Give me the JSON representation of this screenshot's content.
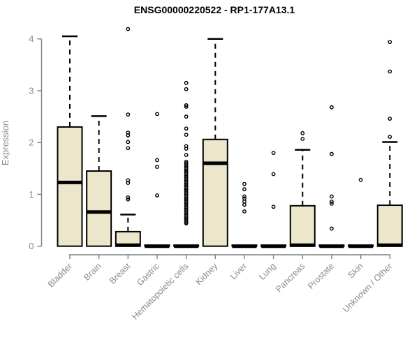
{
  "chart_data": {
    "type": "boxplot",
    "title": "ENSG00000220522 - RP1-177A13.1",
    "ylabel": "Expression",
    "xlabel": "",
    "ylim": [
      0,
      4.3
    ],
    "yticks": [
      0,
      1,
      2,
      3,
      4
    ],
    "grid": false,
    "legend": "none",
    "categories": [
      "Bladder",
      "Brain",
      "Breast",
      "Gastric",
      "Hematopoietic cells",
      "Kidney",
      "Liver",
      "Lung",
      "Pancreas",
      "Prostate",
      "Skin",
      "Unknown / Other"
    ],
    "series": [
      {
        "name": "Bladder",
        "q1": 0,
        "median": 1.23,
        "q3": 2.3,
        "whisker_low": 0,
        "whisker_high": 4.05,
        "outliers": []
      },
      {
        "name": "Brain",
        "q1": 0,
        "median": 0.66,
        "q3": 1.45,
        "whisker_low": 0,
        "whisker_high": 2.51,
        "outliers": []
      },
      {
        "name": "Breast",
        "q1": 0,
        "median": 0.02,
        "q3": 0.28,
        "whisker_low": 0,
        "whisker_high": 0.61,
        "outliers": [
          4.19,
          2.54,
          2.19,
          2.14,
          2.01,
          1.89,
          1.27,
          1.22,
          0.94,
          0.9
        ]
      },
      {
        "name": "Gastric",
        "q1": 0,
        "median": 0,
        "q3": 0.02,
        "whisker_low": 0,
        "whisker_high": 0.02,
        "outliers": [
          2.55,
          1.66,
          1.53,
          0.98
        ]
      },
      {
        "name": "Hematopoietic cells",
        "q1": 0,
        "median": 0,
        "q3": 0.02,
        "whisker_low": 0,
        "whisker_high": 0.02,
        "outliers": [
          3.15,
          3.03,
          2.72,
          2.69,
          2.5,
          2.27,
          2.15,
          1.93,
          1.88,
          1.76,
          1.63,
          1.6,
          1.57,
          1.54,
          1.51,
          1.48,
          1.45,
          1.42,
          1.39,
          1.36,
          1.33,
          1.3,
          1.27,
          1.24,
          1.21,
          1.18,
          1.15,
          1.12,
          1.09,
          1.06,
          1.03,
          1.0,
          0.97,
          0.94,
          0.91,
          0.88,
          0.85,
          0.82,
          0.79,
          0.76,
          0.73,
          0.7,
          0.67,
          0.64,
          0.61,
          0.58,
          0.55,
          0.52,
          0.49,
          0.46,
          0.44
        ]
      },
      {
        "name": "Kidney",
        "q1": 0,
        "median": 1.6,
        "q3": 2.06,
        "whisker_low": 0,
        "whisker_high": 4.0,
        "outliers": []
      },
      {
        "name": "Liver",
        "q1": 0,
        "median": 0,
        "q3": 0.02,
        "whisker_low": 0,
        "whisker_high": 0.02,
        "outliers": [
          1.2,
          1.1,
          0.96,
          0.92,
          0.86,
          0.8,
          0.67
        ]
      },
      {
        "name": "Lung",
        "q1": 0,
        "median": 0,
        "q3": 0.02,
        "whisker_low": 0,
        "whisker_high": 0.02,
        "outliers": [
          1.8,
          1.39,
          0.76
        ]
      },
      {
        "name": "Pancreas",
        "q1": 0,
        "median": 0.02,
        "q3": 0.78,
        "whisker_low": 0,
        "whisker_high": 1.86,
        "outliers": [
          2.18,
          2.07
        ]
      },
      {
        "name": "Prostate",
        "q1": 0,
        "median": 0,
        "q3": 0.02,
        "whisker_low": 0,
        "whisker_high": 0.02,
        "outliers": [
          2.68,
          1.78,
          0.96,
          0.86,
          0.82,
          0.34
        ]
      },
      {
        "name": "Skin",
        "q1": 0,
        "median": 0,
        "q3": 0.02,
        "whisker_low": 0,
        "whisker_high": 0.02,
        "outliers": [
          1.28
        ]
      },
      {
        "name": "Unknown / Other",
        "q1": 0,
        "median": 0.02,
        "q3": 0.79,
        "whisker_low": 0,
        "whisker_high": 2.01,
        "outliers": [
          3.94,
          3.37,
          2.46,
          2.11
        ]
      }
    ],
    "colors": {
      "box_fill": "#ECE6CB",
      "box_border": "#000000",
      "median": "#000000",
      "whisker": "#000000",
      "outlier": "#000000",
      "axis": "#7e7e7e",
      "tick_label": "#8a8a8a",
      "title": "#000000",
      "background": "#ffffff"
    }
  }
}
